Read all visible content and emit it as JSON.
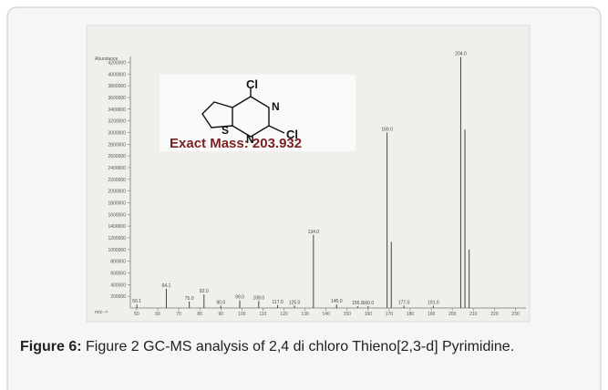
{
  "chart_data": {
    "type": "spectrum",
    "y_label": "Abundance",
    "x_label": "m/z-->",
    "x": [
      50.1,
      64.1,
      75.0,
      82.0,
      90.0,
      99.0,
      108.0,
      117.0,
      125.0,
      134.0,
      145.0,
      155.0,
      160.0,
      169.0,
      171.0,
      177.0,
      191.0,
      204.0,
      206.0,
      208.0
    ],
    "x_labels": [
      "50.1",
      "64.1",
      "75.0",
      "82.0",
      "90.0",
      "99.0",
      "108.0",
      "117.0",
      "125.0",
      "134.0",
      "145.0",
      "155.0",
      "160.0",
      "169.0",
      null,
      "177.0",
      "191.0",
      "204.0",
      null,
      null
    ],
    "values": [
      60000,
      330000,
      110000,
      230000,
      40000,
      130000,
      120000,
      50000,
      40000,
      1250000,
      60000,
      30000,
      30000,
      3000000,
      1130000,
      40000,
      40000,
      4290000,
      3050000,
      1000000
    ],
    "color": "#444444",
    "xlim": [
      47,
      235
    ],
    "xticks": [
      50,
      60,
      70,
      80,
      90,
      100,
      110,
      120,
      130,
      140,
      150,
      160,
      170,
      180,
      190,
      200,
      210,
      220,
      230
    ],
    "ylim": [
      0,
      4300000
    ],
    "yticks": [
      200000,
      400000,
      600000,
      800000,
      1000000,
      1200000,
      1400000,
      1600000,
      1800000,
      2000000,
      2200000,
      2400000,
      2600000,
      2800000,
      3000000,
      3200000,
      3400000,
      3600000,
      3800000,
      4000000,
      4200000
    ]
  },
  "structure": {
    "atoms": [
      "Cl",
      "N",
      "N",
      "Cl",
      "S"
    ],
    "exact_mass": "Exact Mass: 203.932"
  },
  "caption": {
    "label": "Figure 6:",
    "text": " Figure 2 GC-MS analysis of 2,4 di chloro Thieno[2,3-d] Pyrimidine."
  }
}
